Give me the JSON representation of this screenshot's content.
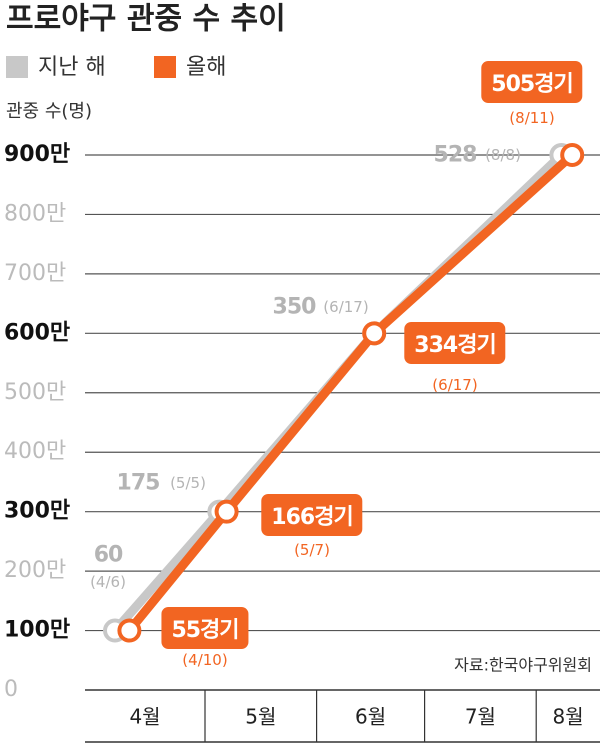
{
  "chart_data": {
    "type": "line",
    "title": "프로야구 관중 수 추이",
    "ylabel": "관중 수(명)",
    "source": "자료:한국야구위원회",
    "categories": [
      "4월",
      "5월",
      "6월",
      "7월",
      "8월"
    ],
    "ylim": [
      0,
      9000000
    ],
    "yticks": [
      0,
      {
        "value": 1000000,
        "label": "100만"
      },
      {
        "value": 2000000,
        "label": "200만"
      },
      {
        "value": 3000000,
        "label": "300만"
      },
      {
        "value": 4000000,
        "label": "400만"
      },
      {
        "value": 5000000,
        "label": "500만"
      },
      {
        "value": 6000000,
        "label": "600만"
      },
      {
        "value": 7000000,
        "label": "700만"
      },
      {
        "value": 8000000,
        "label": "800만"
      },
      {
        "value": 9000000,
        "label": "900만"
      }
    ],
    "grid": true,
    "series": [
      {
        "name": "지난 해",
        "color": "#c8c8c8",
        "x": [
          "4/6",
          "5/5",
          "6/17",
          "8/8"
        ],
        "values": [
          1000000,
          3000000,
          6000000,
          9000000
        ],
        "games": [
          60,
          175,
          350,
          528
        ]
      },
      {
        "name": "올해",
        "color": "#f26522",
        "x": [
          "4/10",
          "5/7",
          "6/17",
          "8/11"
        ],
        "values": [
          1000000,
          3000000,
          6000000,
          9000000
        ],
        "games": [
          55,
          166,
          334,
          505
        ],
        "game_labels": [
          "55경기",
          "166경기",
          "334경기",
          "505경기"
        ]
      }
    ]
  }
}
